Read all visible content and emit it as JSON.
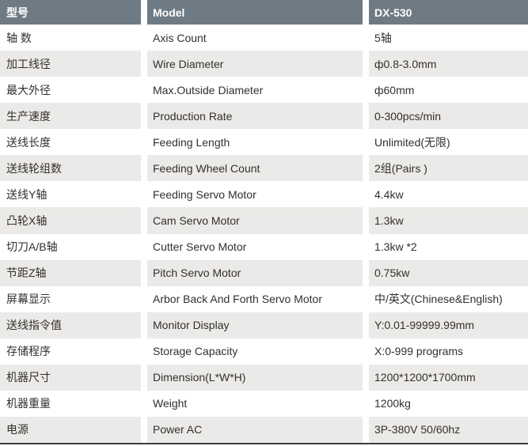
{
  "table": {
    "header": {
      "cn": "型号",
      "en": "Model",
      "value": "DX-530"
    },
    "rows": [
      {
        "cn": "轴 数",
        "en": "Axis Count",
        "value": "5轴"
      },
      {
        "cn": "加工线径",
        "en": "Wire Diameter",
        "value": "ф0.8-3.0mm"
      },
      {
        "cn": "最大外径",
        "en": "Max.Outside Diameter",
        "value": "ф60mm"
      },
      {
        "cn": "生产速度",
        "en": "Production Rate",
        "value": "0-300pcs/min"
      },
      {
        "cn": "送线长度",
        "en": "Feeding Length",
        "value": "Unlimited(无限)"
      },
      {
        "cn": "送线轮组数",
        "en": "Feeding Wheel Count",
        "value": "2组(Pairs )"
      },
      {
        "cn": "送线Y轴",
        "en": "Feeding Servo Motor",
        "value": "4.4kw"
      },
      {
        "cn": "凸轮X轴",
        "en": "Cam Servo Motor",
        "value": "1.3kw"
      },
      {
        "cn": "切刀A/B轴",
        "en": "Cutter Servo Motor",
        "value": "1.3kw *2"
      },
      {
        "cn": "节距Z轴",
        "en": "Pitch Servo Motor",
        "value": "0.75kw"
      },
      {
        "cn": "屏幕显示",
        "en": "Arbor Back And Forth Servo Motor",
        "value": "中/英文(Chinese&English)"
      },
      {
        "cn": "送线指令值",
        "en": "Monitor Display",
        "value": "Y:0.01-99999.99mm"
      },
      {
        "cn": "存储程序",
        "en": "Storage Capacity",
        "value": "X:0-999 programs"
      },
      {
        "cn": "机器尺寸",
        "en": "Dimension(L*W*H)",
        "value": "1200*1200*1700mm"
      },
      {
        "cn": "机器重量",
        "en": "Weight",
        "value": "1200kg"
      },
      {
        "cn": "电源",
        "en": "Power AC",
        "value": "3P-380V 50/60hz"
      }
    ],
    "colors": {
      "header_bg": "#6e7a84",
      "alt_row_bg": "#ebeae8",
      "text": "#33302d",
      "header_text": "#ffffff",
      "bottom_border": "#3d3d3d"
    }
  }
}
